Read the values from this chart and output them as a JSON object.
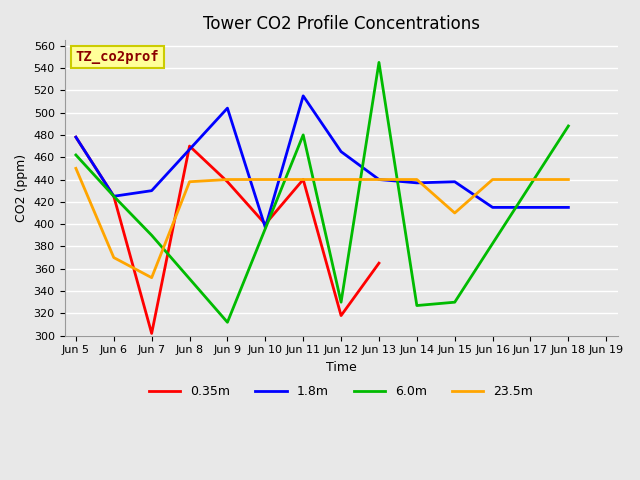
{
  "title": "Tower CO2 Profile Concentrations",
  "xlabel": "Time",
  "ylabel": "CO2 (ppm)",
  "legend_label": "TZ_co2prof",
  "ylim": [
    300,
    565
  ],
  "yticks": [
    300,
    320,
    340,
    360,
    380,
    400,
    420,
    440,
    460,
    480,
    500,
    520,
    540,
    560
  ],
  "x_labels": [
    "Jun 5",
    "Jun 6",
    "Jun 7",
    "Jun 8",
    "Jun 9",
    "Jun 10",
    "Jun 11",
    "Jun 12",
    "Jun 13",
    "Jun 14",
    "Jun 15",
    "Jun 16",
    "Jun 17",
    "Jun 18",
    "Jun 19"
  ],
  "series": [
    {
      "label": "0.35m",
      "color": "#ff0000",
      "xs": [
        0,
        1,
        2,
        3,
        4,
        5,
        6,
        7,
        8
      ],
      "ys": [
        478,
        425,
        302,
        470,
        438,
        400,
        440,
        318,
        365
      ]
    },
    {
      "label": "1.8m",
      "color": "#0000ff",
      "xs": [
        0,
        1,
        2,
        4,
        5,
        6,
        7,
        8,
        9,
        10,
        11,
        12,
        13
      ],
      "ys": [
        478,
        425,
        430,
        504,
        397,
        515,
        465,
        440,
        437,
        438,
        415,
        415,
        415
      ]
    },
    {
      "label": "6.0m",
      "color": "#00bb00",
      "xs": [
        0,
        1,
        2,
        4,
        6,
        7,
        8,
        9,
        10,
        13
      ],
      "ys": [
        462,
        425,
        390,
        312,
        480,
        330,
        545,
        327,
        330,
        488
      ]
    },
    {
      "label": "23.5m",
      "color": "#ffa500",
      "xs": [
        0,
        1,
        2,
        3,
        4,
        5,
        6,
        7,
        8,
        9,
        10,
        11,
        12,
        13
      ],
      "ys": [
        450,
        370,
        352,
        438,
        440,
        440,
        440,
        440,
        440,
        440,
        410,
        440,
        440,
        440
      ]
    }
  ],
  "bg_color": "#e8e8e8",
  "grid_color": "#ffffff",
  "annotation_box_facecolor": "#ffff99",
  "annotation_text_color": "#8b0000",
  "annotation_border_color": "#cccc00"
}
